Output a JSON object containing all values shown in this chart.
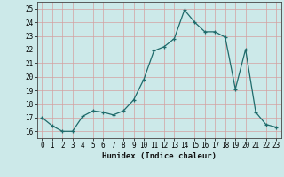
{
  "x": [
    0,
    1,
    2,
    3,
    4,
    5,
    6,
    7,
    8,
    9,
    10,
    11,
    12,
    13,
    14,
    15,
    16,
    17,
    18,
    19,
    20,
    21,
    22,
    23
  ],
  "y": [
    17.0,
    16.4,
    16.0,
    16.0,
    17.1,
    17.5,
    17.4,
    17.2,
    17.5,
    18.3,
    19.8,
    21.9,
    22.2,
    22.8,
    24.9,
    24.0,
    23.3,
    23.3,
    22.9,
    19.1,
    22.0,
    17.4,
    16.5,
    16.3
  ],
  "xlabel": "Humidex (Indice chaleur)",
  "xlim": [
    -0.5,
    23.5
  ],
  "ylim": [
    15.5,
    25.5
  ],
  "yticks": [
    16,
    17,
    18,
    19,
    20,
    21,
    22,
    23,
    24,
    25
  ],
  "xticks": [
    0,
    1,
    2,
    3,
    4,
    5,
    6,
    7,
    8,
    9,
    10,
    11,
    12,
    13,
    14,
    15,
    16,
    17,
    18,
    19,
    20,
    21,
    22,
    23
  ],
  "bg_color": "#cce9e9",
  "grid_major_color": "#d4a0a0",
  "grid_minor_color": "#d4a0a0",
  "line_color": "#1f6b6b",
  "marker": "+",
  "tick_label_fontsize": 5.5,
  "xlabel_fontsize": 6.5,
  "linewidth": 0.9,
  "markersize": 3.5
}
